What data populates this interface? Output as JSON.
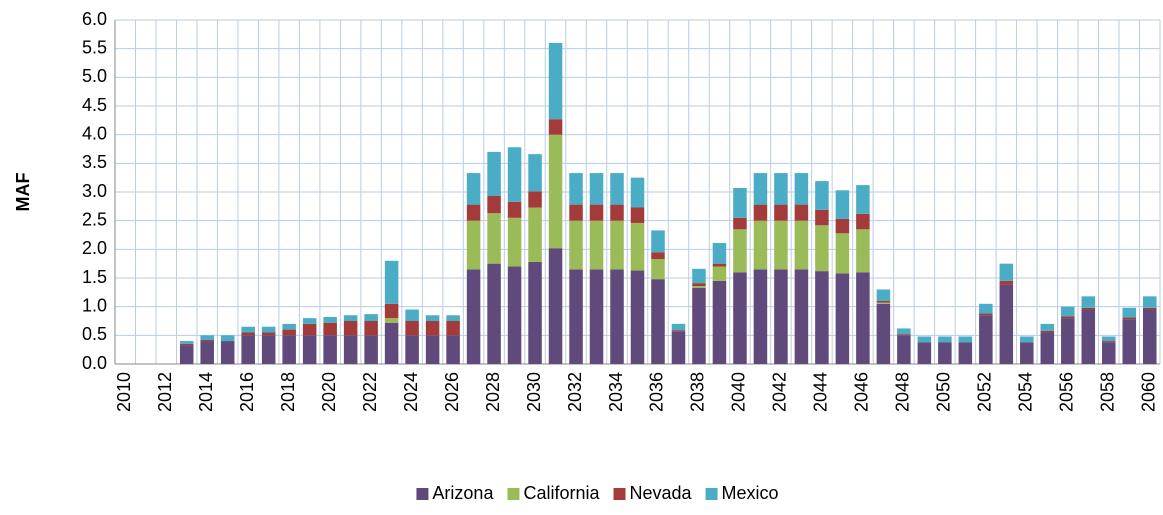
{
  "chart_data": {
    "type": "stacked_bar",
    "y_label": "MAF",
    "categories": [
      "2010",
      null,
      "2012",
      null,
      "2014",
      null,
      "2016",
      null,
      "2018",
      null,
      "2020",
      null,
      "2022",
      null,
      "2024",
      null,
      "2026",
      null,
      "2028",
      null,
      "2030",
      null,
      "2032",
      null,
      "2034",
      null,
      "2036",
      null,
      "2038",
      null,
      "2040",
      null,
      "2042",
      null,
      "2044",
      null,
      "2046",
      null,
      "2048",
      null,
      "2050",
      null,
      "2052",
      null,
      "2054",
      null,
      "2056",
      null,
      "2058",
      null,
      "2060"
    ],
    "series": [
      {
        "name": "Arizona",
        "color": "#604a7b",
        "values": [
          0,
          0,
          0,
          0.33,
          0.4,
          0.4,
          0.5,
          0.5,
          0.5,
          0.5,
          0.5,
          0.5,
          0.5,
          0.72,
          0.5,
          0.5,
          0.5,
          1.65,
          1.75,
          1.7,
          1.78,
          2.02,
          1.65,
          1.65,
          1.65,
          1.63,
          1.48,
          0.57,
          1.33,
          1.45,
          1.6,
          1.65,
          1.65,
          1.65,
          1.62,
          1.58,
          1.6,
          1.05,
          0.5,
          0.38,
          0.38,
          0.38,
          0.85,
          1.38,
          0.38,
          0.55,
          0.8,
          0.95,
          0.38,
          0.78,
          0.95
        ]
      },
      {
        "name": "California",
        "color": "#9bbb59",
        "values": [
          0,
          0,
          0,
          0,
          0,
          0,
          0,
          0,
          0,
          0,
          0,
          0,
          0,
          0.08,
          0,
          0,
          0,
          0.85,
          0.88,
          0.85,
          0.95,
          1.98,
          0.85,
          0.85,
          0.85,
          0.83,
          0.35,
          0,
          0.03,
          0.25,
          0.75,
          0.85,
          0.85,
          0.85,
          0.8,
          0.7,
          0.75,
          0.02,
          0,
          0,
          0,
          0,
          0,
          0,
          0,
          0,
          0,
          0,
          0,
          0,
          0
        ]
      },
      {
        "name": "Nevada",
        "color": "#a33b3b",
        "values": [
          0,
          0,
          0,
          0.02,
          0.02,
          0,
          0.05,
          0.05,
          0.1,
          0.2,
          0.22,
          0.25,
          0.25,
          0.25,
          0.25,
          0.25,
          0.25,
          0.28,
          0.3,
          0.28,
          0.28,
          0.27,
          0.28,
          0.28,
          0.28,
          0.27,
          0.12,
          0.02,
          0.05,
          0.05,
          0.2,
          0.28,
          0.28,
          0.28,
          0.27,
          0.25,
          0.27,
          0.03,
          0.02,
          0,
          0,
          0,
          0.03,
          0.07,
          0,
          0.03,
          0.03,
          0.03,
          0.02,
          0.03,
          0.03
        ]
      },
      {
        "name": "Mexico",
        "color": "#4bacc6",
        "values": [
          0,
          0,
          0,
          0.05,
          0.08,
          0.1,
          0.1,
          0.1,
          0.1,
          0.1,
          0.1,
          0.1,
          0.12,
          0.75,
          0.2,
          0.1,
          0.1,
          0.55,
          0.77,
          0.95,
          0.65,
          1.33,
          0.55,
          0.55,
          0.55,
          0.52,
          0.38,
          0.11,
          0.25,
          0.36,
          0.52,
          0.55,
          0.55,
          0.55,
          0.5,
          0.5,
          0.5,
          0.2,
          0.1,
          0.1,
          0.1,
          0.1,
          0.17,
          0.3,
          0.1,
          0.12,
          0.17,
          0.2,
          0.08,
          0.17,
          0.2
        ]
      }
    ],
    "ylim": [
      0,
      6
    ],
    "yticks": [
      {
        "value": 0,
        "label": "0.0"
      },
      {
        "value": 0.5,
        "label": "0.5"
      },
      {
        "value": 1,
        "label": "1.0"
      },
      {
        "value": 1.5,
        "label": "1.5"
      },
      {
        "value": 2,
        "label": "2.0"
      },
      {
        "value": 2.5,
        "label": "2.5"
      },
      {
        "value": 3,
        "label": "3.0"
      },
      {
        "value": 3.5,
        "label": "3.5"
      },
      {
        "value": 4,
        "label": "4.0"
      },
      {
        "value": 4.5,
        "label": "4.5"
      },
      {
        "value": 5,
        "label": "5.0"
      },
      {
        "value": 5.5,
        "label": "5.5"
      },
      {
        "value": 6,
        "label": "6.0"
      }
    ],
    "grid": true,
    "legend": "bottom"
  }
}
